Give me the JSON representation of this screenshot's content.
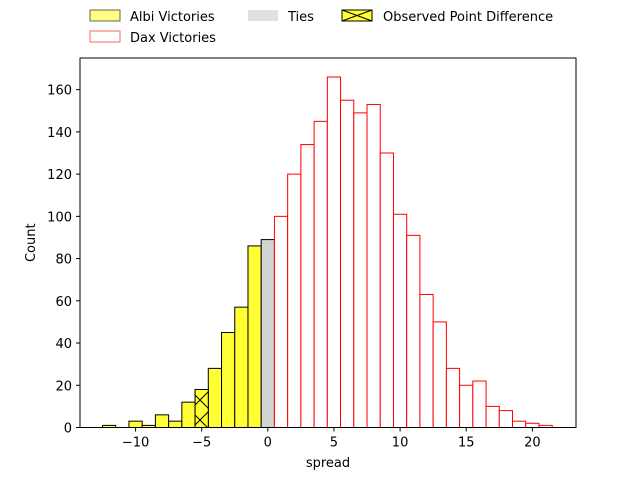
{
  "chart_data": {
    "type": "histogram",
    "xlabel": "spread",
    "ylabel": "Count",
    "xlim": [
      -14.2,
      23.3
    ],
    "ylim": [
      0,
      175
    ],
    "xticks": [
      -10,
      -5,
      0,
      5,
      10,
      15,
      20
    ],
    "xtick_labels": [
      "−10",
      "−5",
      "0",
      "5",
      "10",
      "15",
      "20"
    ],
    "yticks": [
      0,
      20,
      40,
      60,
      80,
      100,
      120,
      140,
      160
    ],
    "yticks_labels": [
      "0",
      "20",
      "40",
      "60",
      "80",
      "100",
      "120",
      "140",
      "160"
    ],
    "bin_width": 1,
    "series": [
      {
        "name": "Albi Victories",
        "fill": "#ffff33",
        "edge": "#000000",
        "bins": [
          {
            "x": -12.5,
            "count": 1
          },
          {
            "x": -10.5,
            "count": 3
          },
          {
            "x": -9.5,
            "count": 1
          },
          {
            "x": -8.5,
            "count": 6
          },
          {
            "x": -7.5,
            "count": 3
          },
          {
            "x": -6.5,
            "count": 12
          },
          {
            "x": -5.5,
            "count": 18
          },
          {
            "x": -4.5,
            "count": 28
          },
          {
            "x": -3.5,
            "count": 45
          },
          {
            "x": -2.5,
            "count": 57
          },
          {
            "x": -1.5,
            "count": 86
          }
        ]
      },
      {
        "name": "Ties",
        "fill": "#d3d3d3",
        "edge": "#000000",
        "bins": [
          {
            "x": -0.5,
            "count": 89
          }
        ]
      },
      {
        "name": "Dax Victories",
        "fill": "#ffffff",
        "edge": "#ff0000",
        "bins": [
          {
            "x": 0.5,
            "count": 100
          },
          {
            "x": 1.5,
            "count": 120
          },
          {
            "x": 2.5,
            "count": 134
          },
          {
            "x": 3.5,
            "count": 145
          },
          {
            "x": 4.5,
            "count": 166
          },
          {
            "x": 5.5,
            "count": 155
          },
          {
            "x": 6.5,
            "count": 149
          },
          {
            "x": 7.5,
            "count": 153
          },
          {
            "x": 8.5,
            "count": 130
          },
          {
            "x": 9.5,
            "count": 101
          },
          {
            "x": 10.5,
            "count": 91
          },
          {
            "x": 11.5,
            "count": 63
          },
          {
            "x": 12.5,
            "count": 50
          },
          {
            "x": 13.5,
            "count": 28
          },
          {
            "x": 14.5,
            "count": 20
          },
          {
            "x": 15.5,
            "count": 22
          },
          {
            "x": 16.5,
            "count": 10
          },
          {
            "x": 17.5,
            "count": 8
          },
          {
            "x": 18.5,
            "count": 3
          },
          {
            "x": 19.5,
            "count": 2
          },
          {
            "x": 20.5,
            "count": 1
          }
        ]
      }
    ],
    "observed": {
      "name": "Observed Point Difference",
      "x": -5.5,
      "count": 18,
      "fill": "#ffff33",
      "edge": "#000000",
      "hatch": "x"
    },
    "legend": {
      "placement": "above-top-left",
      "ncol": 3,
      "entries": [
        {
          "label": "Albi Victories",
          "fill": "#ffff33",
          "edge": "#000000",
          "alpha": 0.6,
          "hatch": false
        },
        {
          "label": "Dax Victories",
          "fill": "#ffffff",
          "edge": "#ff0000",
          "alpha": 0.6,
          "hatch": false
        },
        {
          "label": "Ties",
          "fill": "#d3d3d3",
          "edge": "none",
          "alpha": 0.6,
          "hatch": false
        },
        {
          "label": "Observed Point Difference",
          "fill": "#ffff33",
          "edge": "#000000",
          "alpha": 1,
          "hatch": true
        }
      ]
    }
  }
}
